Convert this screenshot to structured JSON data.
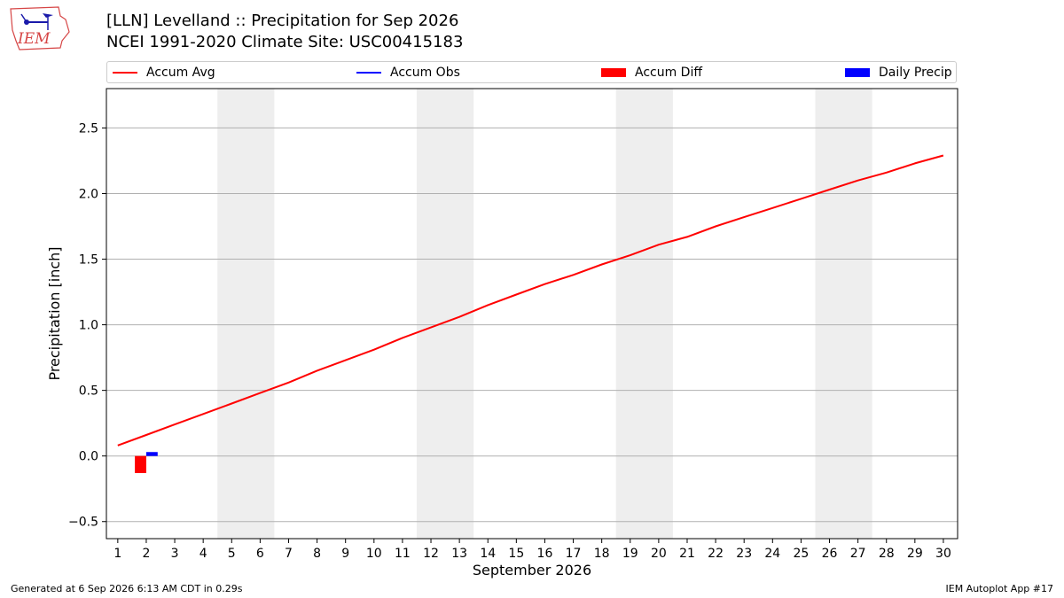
{
  "logo": {
    "text": "IEM"
  },
  "header": {
    "title": "[LLN] Levelland :: Precipitation for Sep 2026",
    "subtitle": "NCEI 1991-2020 Climate Site: USC00415183"
  },
  "legend": {
    "items": [
      {
        "label": "Accum Avg",
        "kind": "line",
        "color": "#ff0000"
      },
      {
        "label": "Accum Obs",
        "kind": "line",
        "color": "#0000ff"
      },
      {
        "label": "Accum Diff",
        "kind": "patch",
        "color": "#ff0000"
      },
      {
        "label": "Daily Precip",
        "kind": "patch",
        "color": "#0000ff"
      }
    ]
  },
  "footer": {
    "generated": "Generated at 6 Sep 2026 6:13 AM CDT in 0.29s",
    "app": "IEM Autoplot App #17"
  },
  "chart_data": {
    "type": "line",
    "xlabel": "September 2026",
    "ylabel": "Precipitation [inch]",
    "xlim": [
      0.6,
      30.5
    ],
    "ylim": [
      -0.63,
      2.8
    ],
    "x_ticks": [
      1,
      2,
      3,
      4,
      5,
      6,
      7,
      8,
      9,
      10,
      11,
      12,
      13,
      14,
      15,
      16,
      17,
      18,
      19,
      20,
      21,
      22,
      23,
      24,
      25,
      26,
      27,
      28,
      29,
      30
    ],
    "y_ticks": [
      -0.5,
      0.0,
      0.5,
      1.0,
      1.5,
      2.0,
      2.5
    ],
    "y_tick_labels": [
      "−0.5",
      "0.0",
      "0.5",
      "1.0",
      "1.5",
      "2.0",
      "2.5"
    ],
    "grid": "y",
    "weekend_bands": [
      [
        4.5,
        6.5
      ],
      [
        11.5,
        13.5
      ],
      [
        18.5,
        20.5
      ],
      [
        25.5,
        27.5
      ]
    ],
    "weekend_band_color": "#eeeeee",
    "series": [
      {
        "name": "Accum Avg",
        "kind": "line",
        "color": "#ff0000",
        "x": [
          1,
          2,
          3,
          4,
          5,
          6,
          7,
          8,
          9,
          10,
          11,
          12,
          13,
          14,
          15,
          16,
          17,
          18,
          19,
          20,
          21,
          22,
          23,
          24,
          25,
          26,
          27,
          28,
          29,
          30
        ],
        "values": [
          0.08,
          0.16,
          0.24,
          0.32,
          0.4,
          0.48,
          0.56,
          0.65,
          0.73,
          0.81,
          0.9,
          0.98,
          1.06,
          1.15,
          1.23,
          1.31,
          1.38,
          1.46,
          1.53,
          1.61,
          1.67,
          1.75,
          1.82,
          1.89,
          1.96,
          2.03,
          2.1,
          2.16,
          2.23,
          2.29
        ]
      },
      {
        "name": "Accum Diff",
        "kind": "bar",
        "color": "#ff0000",
        "x": [
          1.8
        ],
        "width": 0.4,
        "values": [
          -0.13
        ]
      },
      {
        "name": "Daily Precip",
        "kind": "bar",
        "color": "#0000ff",
        "x": [
          2.2
        ],
        "width": 0.4,
        "values": [
          0.03
        ]
      }
    ]
  }
}
